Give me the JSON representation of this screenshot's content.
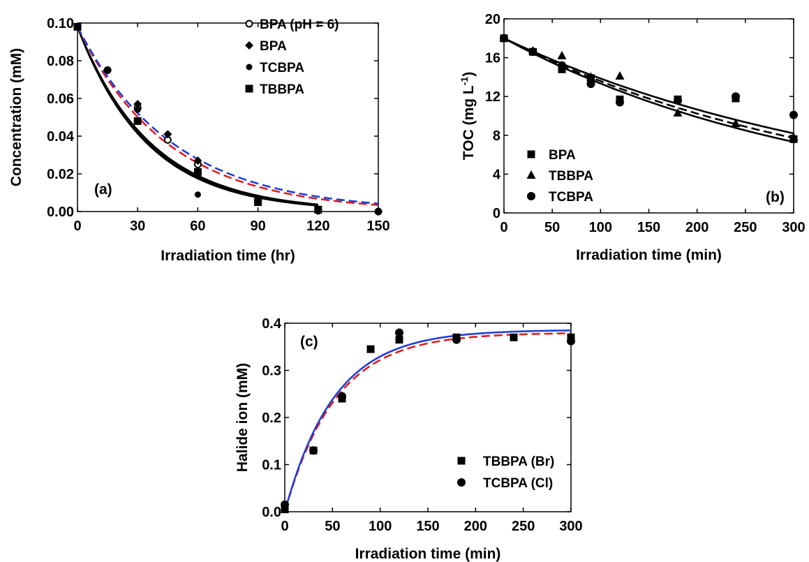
{
  "chart_data": [
    {
      "type": "scatter",
      "panel_label": "(a)",
      "xlabel": "Irradiation time (hr)",
      "ylabel": "Concentration (mM)",
      "xlim": [
        0,
        150
      ],
      "ylim": [
        0,
        0.1
      ],
      "xticks": [
        "0",
        "30",
        "60",
        "90",
        "120",
        "150"
      ],
      "yticks": [
        "0.00",
        "0.02",
        "0.04",
        "0.06",
        "0.08",
        "0.10"
      ],
      "legend_position": "top-right",
      "series": [
        {
          "name": "BPA (pH = 6)",
          "marker": "open-circle",
          "x": [
            0,
            15,
            30,
            45,
            60,
            90,
            120,
            150
          ],
          "y": [
            0.098,
            0.075,
            0.055,
            0.038,
            0.025,
            0.006,
            0.001,
            0.0
          ]
        },
        {
          "name": "BPA",
          "marker": "diamond",
          "x": [
            0,
            15,
            30,
            45,
            60,
            90,
            120,
            150
          ],
          "y": [
            0.098,
            0.075,
            0.057,
            0.041,
            0.027,
            0.006,
            0.001,
            0.0
          ]
        },
        {
          "name": "TCBPA",
          "marker": "small-circle",
          "x": [
            0,
            15,
            30,
            60,
            90,
            120
          ],
          "y": [
            0.098,
            0.075,
            0.054,
            0.009,
            0.005,
            0.0
          ]
        },
        {
          "name": "TBBPA",
          "marker": "square",
          "x": [
            0,
            30,
            60,
            90,
            120
          ],
          "y": [
            0.098,
            0.048,
            0.021,
            0.005,
            0.001
          ]
        }
      ],
      "fits": [
        {
          "style": "solid",
          "color": "#000000",
          "x_end": 120,
          "k": 0.0287
        },
        {
          "style": "solid",
          "color": "#000000",
          "x_end": 120,
          "k": 0.028
        },
        {
          "style": "solid",
          "color": "#000000",
          "x_end": 120,
          "k": 0.0273
        },
        {
          "style": "dashed",
          "color": "#e41a1c",
          "x_end": 150,
          "k": 0.0223
        },
        {
          "style": "dashed",
          "color": "#1f3fd6",
          "x_end": 150,
          "k": 0.021
        }
      ]
    },
    {
      "type": "scatter",
      "panel_label": "(b)",
      "xlabel": "Irradiation time (min)",
      "ylabel": "TOC (mg L",
      "ylabel_sup": "-1",
      "ylabel_end": ")",
      "xlim": [
        0,
        300
      ],
      "ylim": [
        0,
        20
      ],
      "xticks": [
        "0",
        "50",
        "100",
        "150",
        "200",
        "250",
        "300"
      ],
      "yticks": [
        "0",
        "4",
        "8",
        "12",
        "16",
        "20"
      ],
      "legend_position": "bottom-left",
      "series": [
        {
          "name": "BPA",
          "marker": "square",
          "x": [
            0,
            30,
            60,
            90,
            120,
            180,
            240,
            300
          ],
          "y": [
            18.0,
            16.6,
            14.8,
            13.9,
            11.7,
            11.7,
            11.8,
            7.6
          ]
        },
        {
          "name": "TBBPA",
          "marker": "triangle",
          "x": [
            0,
            30,
            60,
            90,
            120,
            180,
            240,
            300
          ],
          "y": [
            18.0,
            16.7,
            16.2,
            14.0,
            14.1,
            10.3,
            9.2,
            7.8
          ]
        },
        {
          "name": "TCBPA",
          "marker": "circle",
          "x": [
            0,
            30,
            60,
            90,
            120,
            180,
            240,
            300
          ],
          "y": [
            18.0,
            16.6,
            15.2,
            13.3,
            11.4,
            11.6,
            12.0,
            10.1
          ]
        }
      ],
      "fits": [
        {
          "style": "solid",
          "color": "#000000",
          "x_end": 300,
          "k": 0.003
        },
        {
          "style": "solid",
          "color": "#000000",
          "x_end": 300,
          "k": 0.00262
        },
        {
          "style": "dashed",
          "color": "#000000",
          "x_end": 300,
          "k": 0.00282
        }
      ]
    },
    {
      "type": "scatter",
      "panel_label": "(c)",
      "xlabel": "Irradiation time (min)",
      "ylabel": "Halide ion (mM)",
      "xlim": [
        0,
        300
      ],
      "ylim": [
        0,
        0.4
      ],
      "xticks": [
        "0",
        "50",
        "100",
        "150",
        "200",
        "250",
        "300"
      ],
      "yticks": [
        "0.0",
        "0.1",
        "0.2",
        "0.3",
        "0.4"
      ],
      "legend_position": "bottom-right",
      "series": [
        {
          "name": "TBBPA (Br)",
          "marker": "square",
          "x": [
            0,
            30,
            60,
            90,
            120,
            180,
            240,
            300
          ],
          "y": [
            0.005,
            0.13,
            0.24,
            0.345,
            0.365,
            0.37,
            0.37,
            0.37
          ]
        },
        {
          "name": "TCBPA (Cl)",
          "marker": "circle",
          "x": [
            0,
            30,
            60,
            120,
            180,
            300
          ],
          "y": [
            0.015,
            0.13,
            0.245,
            0.38,
            0.365,
            0.362
          ]
        }
      ],
      "fits": [
        {
          "style": "dashed",
          "color": "#e41a1c",
          "x_end": 300,
          "ymax": 0.38,
          "k": 0.0188
        },
        {
          "style": "solid",
          "color": "#1f3fd6",
          "x_end": 300,
          "ymax": 0.386,
          "k": 0.0192
        }
      ]
    }
  ]
}
